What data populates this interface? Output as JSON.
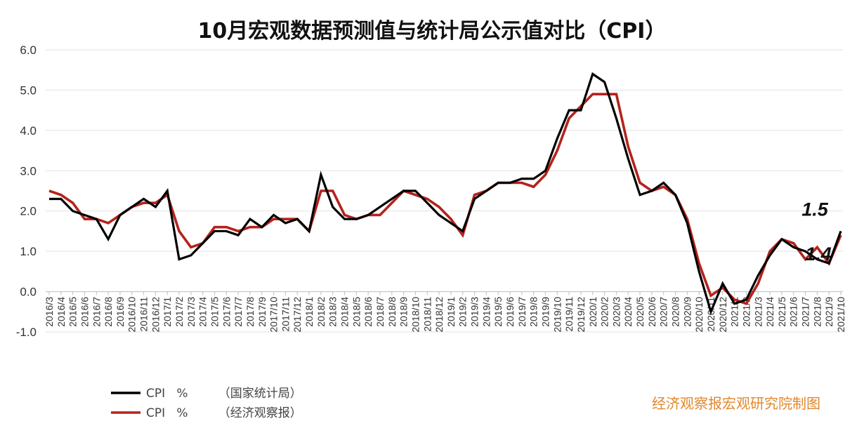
{
  "chart_data": {
    "type": "line",
    "title": "10月宏观数据预测值与统计局公示值对比（CPI）",
    "xlabel": "",
    "ylabel": "",
    "ylim": [
      -1.0,
      6.0
    ],
    "yticks": [
      "6.0",
      "5.0",
      "4.0",
      "3.0",
      "2.0",
      "1.0",
      "0.0",
      "-1.0"
    ],
    "grid": true,
    "legend_position": "bottom-left",
    "categories": [
      "2016/3",
      "2016/4",
      "2016/5",
      "2016/6",
      "2016/7",
      "2016/8",
      "2016/9",
      "2016/10",
      "2016/11",
      "2016/12",
      "2017/1",
      "2017/2",
      "2017/3",
      "2017/4",
      "2017/5",
      "2017/6",
      "2017/7",
      "2017/8",
      "2017/9",
      "2017/10",
      "2017/11",
      "2017/12",
      "2018/1",
      "2018/2",
      "2018/3",
      "2018/4",
      "2018/5",
      "2018/6",
      "2018/7",
      "2018/8",
      "2018/9",
      "2018/10",
      "2018/11",
      "2018/12",
      "2019/1",
      "2019/2",
      "2019/3",
      "2019/4",
      "2019/5",
      "2019/6",
      "2019/7",
      "2019/8",
      "2019/9",
      "2019/10",
      "2019/11",
      "2019/12",
      "2020/1",
      "2020/2",
      "2020/3",
      "2020/4",
      "2020/5",
      "2020/6",
      "2020/7",
      "2020/8",
      "2020/9",
      "2020/10",
      "2020/11",
      "2020/12",
      "2021/1",
      "2021/2",
      "2021/3",
      "2021/4",
      "2021/5",
      "2021/6",
      "2021/7",
      "2021/8",
      "2021/9",
      "2021/10"
    ],
    "series": [
      {
        "name": "CPI   %        （国家统计局）",
        "color": "#000000",
        "values": [
          2.3,
          2.3,
          2.0,
          1.9,
          1.8,
          1.3,
          1.9,
          2.1,
          2.3,
          2.1,
          2.5,
          0.8,
          0.9,
          1.2,
          1.5,
          1.5,
          1.4,
          1.8,
          1.6,
          1.9,
          1.7,
          1.8,
          1.5,
          2.9,
          2.1,
          1.8,
          1.8,
          1.9,
          2.1,
          2.3,
          2.5,
          2.5,
          2.2,
          1.9,
          1.7,
          1.5,
          2.3,
          2.5,
          2.7,
          2.7,
          2.8,
          2.8,
          3.0,
          3.8,
          4.5,
          4.5,
          5.4,
          5.2,
          4.3,
          3.3,
          2.4,
          2.5,
          2.7,
          2.4,
          1.7,
          0.5,
          -0.5,
          0.2,
          -0.3,
          -0.2,
          0.4,
          0.9,
          1.3,
          1.1,
          1.0,
          0.8,
          0.7,
          1.5
        ]
      },
      {
        "name": "CPI   %        （经济观察报）",
        "color": "#b5221c",
        "values": [
          2.5,
          2.4,
          2.2,
          1.8,
          1.8,
          1.7,
          1.9,
          2.1,
          2.2,
          2.2,
          2.4,
          1.5,
          1.1,
          1.2,
          1.6,
          1.6,
          1.5,
          1.6,
          1.6,
          1.8,
          1.8,
          1.8,
          1.5,
          2.5,
          2.5,
          1.9,
          1.8,
          1.9,
          1.9,
          2.2,
          2.5,
          2.4,
          2.3,
          2.1,
          1.8,
          1.4,
          2.4,
          2.5,
          2.7,
          2.7,
          2.7,
          2.6,
          2.9,
          3.5,
          4.3,
          4.6,
          4.9,
          4.9,
          4.9,
          3.6,
          2.7,
          2.5,
          2.6,
          2.4,
          1.8,
          0.7,
          -0.1,
          0.1,
          -0.2,
          -0.3,
          0.2,
          1.0,
          1.3,
          1.2,
          0.8,
          1.1,
          0.7,
          1.4
        ]
      }
    ],
    "annotations": [
      {
        "text": "1.5",
        "series": 0,
        "index": 67
      },
      {
        "text": "1.4",
        "series": 1,
        "index": 67
      }
    ]
  },
  "credit": "经济观察报宏观研究院制图"
}
